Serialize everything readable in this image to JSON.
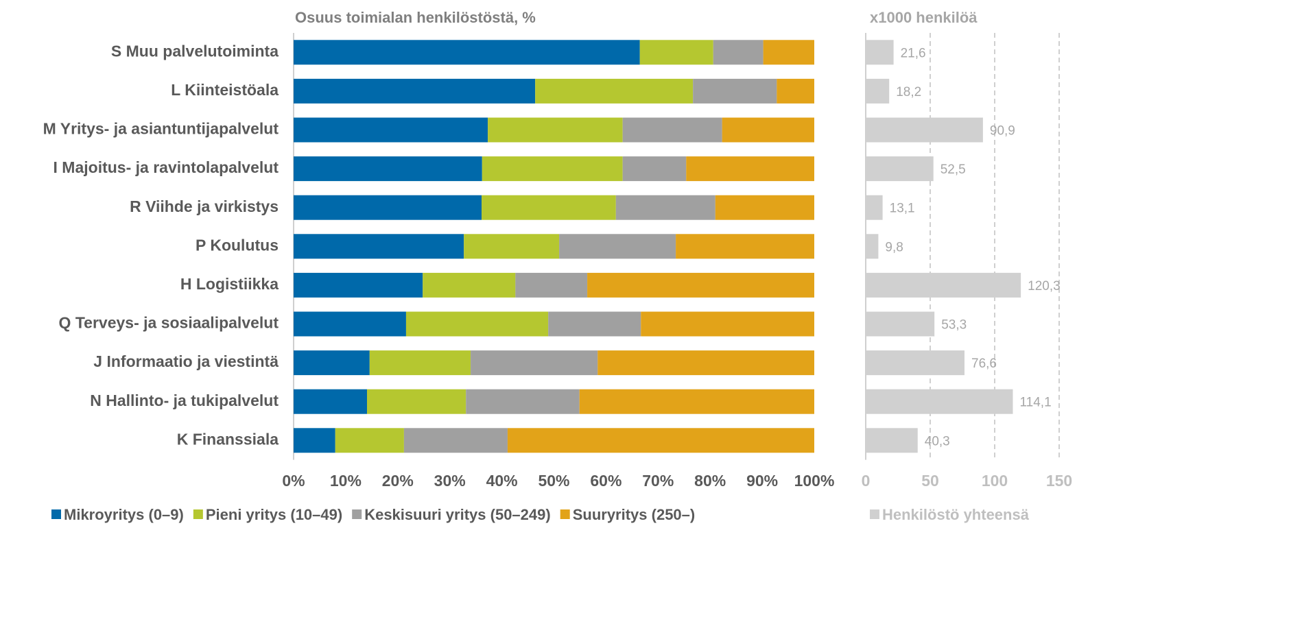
{
  "chart_data": [
    {
      "type": "stacked_barh",
      "title": "Osuus toimialan henkilöstöstä, %",
      "categories": [
        "S Muu palvelutoiminta",
        "L Kiinteistöala",
        "M Yritys- ja asiantuntijapalvelut",
        "I Majoitus- ja ravintolapalvelut",
        "R Viihde ja virkistys",
        "P Koulutus",
        "H Logistiikka",
        "Q Terveys- ja sosiaalipalvelut",
        "J Informaatio ja viestintä",
        "N Hallinto- ja tukipalvelut",
        "K Finanssiala"
      ],
      "series": [
        {
          "name": "Mikroyritys (0–9)",
          "color": "#0069aa",
          "values": [
            66.5,
            46.4,
            37.3,
            36.2,
            36.1,
            32.7,
            24.8,
            21.6,
            14.6,
            14.1,
            8.0
          ]
        },
        {
          "name": "Pieni yritys (10–49)",
          "color": "#b5c730",
          "values": [
            14.1,
            30.3,
            25.9,
            27.0,
            25.8,
            18.3,
            17.8,
            27.3,
            19.4,
            19.0,
            13.2
          ]
        },
        {
          "name": "Keskisuuri yritys (50–249)",
          "color": "#a0a0a0",
          "values": [
            9.6,
            16.1,
            19.1,
            12.2,
            19.1,
            22.4,
            13.8,
            17.8,
            24.4,
            21.8,
            19.9
          ]
        },
        {
          "name": "Suuryritys (250–)",
          "color": "#e2a319",
          "values": [
            9.8,
            7.2,
            17.7,
            24.6,
            19.0,
            26.6,
            43.6,
            33.3,
            41.6,
            45.1,
            58.9
          ]
        }
      ],
      "xlim": [
        0,
        100
      ],
      "xticks": [
        {
          "value": 0,
          "label": "0%"
        },
        {
          "value": 10,
          "label": "10%"
        },
        {
          "value": 20,
          "label": "20%"
        },
        {
          "value": 30,
          "label": "30%"
        },
        {
          "value": 40,
          "label": "40%"
        },
        {
          "value": 50,
          "label": "50%"
        },
        {
          "value": 60,
          "label": "60%"
        },
        {
          "value": 70,
          "label": "70%"
        },
        {
          "value": 80,
          "label": "80%"
        },
        {
          "value": 90,
          "label": "90%"
        },
        {
          "value": 100,
          "label": "100%"
        }
      ],
      "legend": "bottom"
    },
    {
      "type": "barh",
      "title": "x1000 henkilöä",
      "series": [
        {
          "name": "Henkilöstö yhteensä",
          "color": "#d0d0d0",
          "values": [
            21.6,
            18.2,
            90.9,
            52.5,
            13.1,
            9.8,
            120.3,
            53.3,
            76.6,
            114.1,
            40.3
          ],
          "value_labels": [
            "21,6",
            "18,2",
            "90,9",
            "52,5",
            "13,1",
            "9,8",
            "120,3",
            "53,3",
            "76,6",
            "114,1",
            "40,3"
          ]
        }
      ],
      "xlim": [
        0,
        150
      ],
      "xticks": [
        0,
        50,
        100,
        150
      ],
      "grid": true,
      "legend": "bottom"
    }
  ]
}
